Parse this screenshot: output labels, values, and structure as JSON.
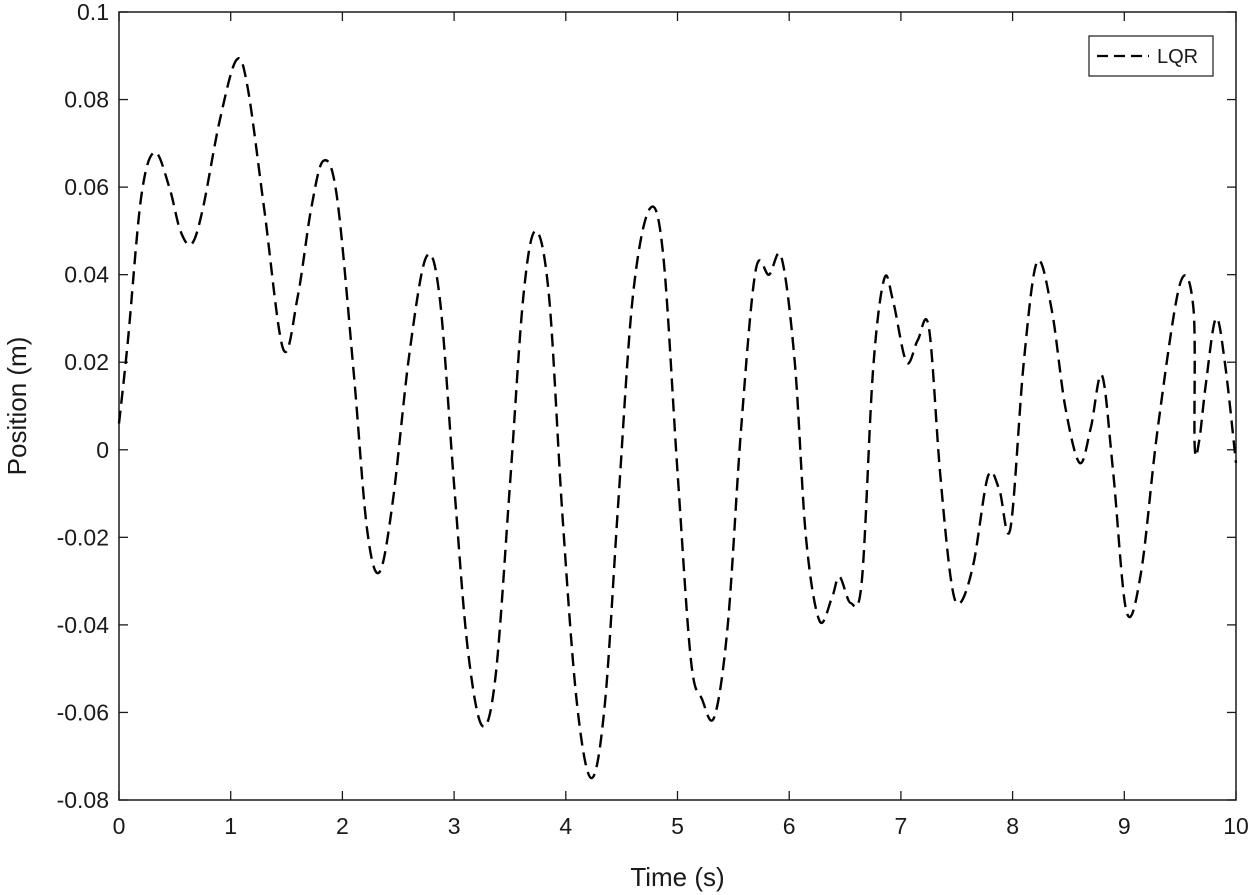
{
  "chart_data": {
    "type": "line",
    "title": "",
    "xlabel": "Time (s)",
    "ylabel": "Position (m)",
    "xlim": [
      0,
      10
    ],
    "ylim": [
      -0.08,
      0.1
    ],
    "xticks": [
      0,
      1,
      2,
      3,
      4,
      5,
      6,
      7,
      8,
      9,
      10
    ],
    "xtick_labels": [
      "0",
      "1",
      "2",
      "3",
      "4",
      "5",
      "6",
      "7",
      "8",
      "9",
      "10"
    ],
    "yticks": [
      -0.08,
      -0.06,
      -0.04,
      -0.02,
      0,
      0.02,
      0.04,
      0.06,
      0.08,
      0.1
    ],
    "ytick_labels": [
      "-0.08",
      "-0.06",
      "-0.04",
      "-0.02",
      "0",
      "0.02",
      "0.04",
      "0.06",
      "0.08",
      "0.1"
    ],
    "grid": false,
    "legend_position": "top-right",
    "series": [
      {
        "name": "LQR",
        "line_style": "dashed",
        "color": "#000000",
        "x": [
          0,
          0.08,
          0.2,
          0.32,
          0.45,
          0.55,
          0.65,
          0.75,
          0.9,
          1.05,
          1.15,
          1.3,
          1.47,
          1.6,
          1.72,
          1.83,
          1.95,
          2.1,
          2.22,
          2.33,
          2.45,
          2.6,
          2.75,
          2.87,
          3.0,
          3.12,
          3.25,
          3.37,
          3.5,
          3.62,
          3.73,
          3.85,
          3.97,
          4.1,
          4.23,
          4.35,
          4.47,
          4.6,
          4.75,
          4.87,
          5.0,
          5.12,
          5.22,
          5.33,
          5.45,
          5.57,
          5.7,
          5.82,
          5.93,
          6.05,
          6.15,
          6.27,
          6.38,
          6.45,
          6.55,
          6.65,
          6.75,
          6.85,
          6.93,
          7.05,
          7.15,
          7.25,
          7.35,
          7.45,
          7.53,
          7.65,
          7.78,
          7.88,
          7.98,
          8.1,
          8.22,
          8.35,
          8.47,
          8.6,
          8.7,
          8.8,
          8.9,
          9.02,
          9.15,
          9.3,
          9.5,
          9.62,
          9.63,
          9.67,
          9.73,
          9.82,
          9.9,
          10.0
        ],
        "y": [
          0.006,
          0.025,
          0.058,
          0.068,
          0.06,
          0.05,
          0.047,
          0.055,
          0.075,
          0.089,
          0.083,
          0.055,
          0.023,
          0.035,
          0.055,
          0.066,
          0.058,
          0.018,
          -0.018,
          -0.028,
          -0.012,
          0.022,
          0.044,
          0.035,
          -0.008,
          -0.045,
          -0.063,
          -0.052,
          -0.008,
          0.035,
          0.05,
          0.035,
          -0.015,
          -0.058,
          -0.075,
          -0.058,
          -0.012,
          0.035,
          0.055,
          0.045,
          -0.005,
          -0.048,
          -0.057,
          -0.061,
          -0.04,
          0.005,
          0.041,
          0.04,
          0.044,
          0.02,
          -0.02,
          -0.039,
          -0.034,
          -0.029,
          -0.035,
          -0.03,
          0.018,
          0.039,
          0.034,
          0.02,
          0.025,
          0.028,
          -0.005,
          -0.03,
          -0.035,
          -0.026,
          -0.006,
          -0.009,
          -0.018,
          0.02,
          0.043,
          0.032,
          0.01,
          -0.003,
          0.005,
          0.017,
          -0.005,
          -0.037,
          -0.028,
          0.005,
          0.038,
          0.032,
          0.001,
          0.002,
          0.015,
          0.03,
          0.02,
          -0.003
        ]
      }
    ]
  }
}
